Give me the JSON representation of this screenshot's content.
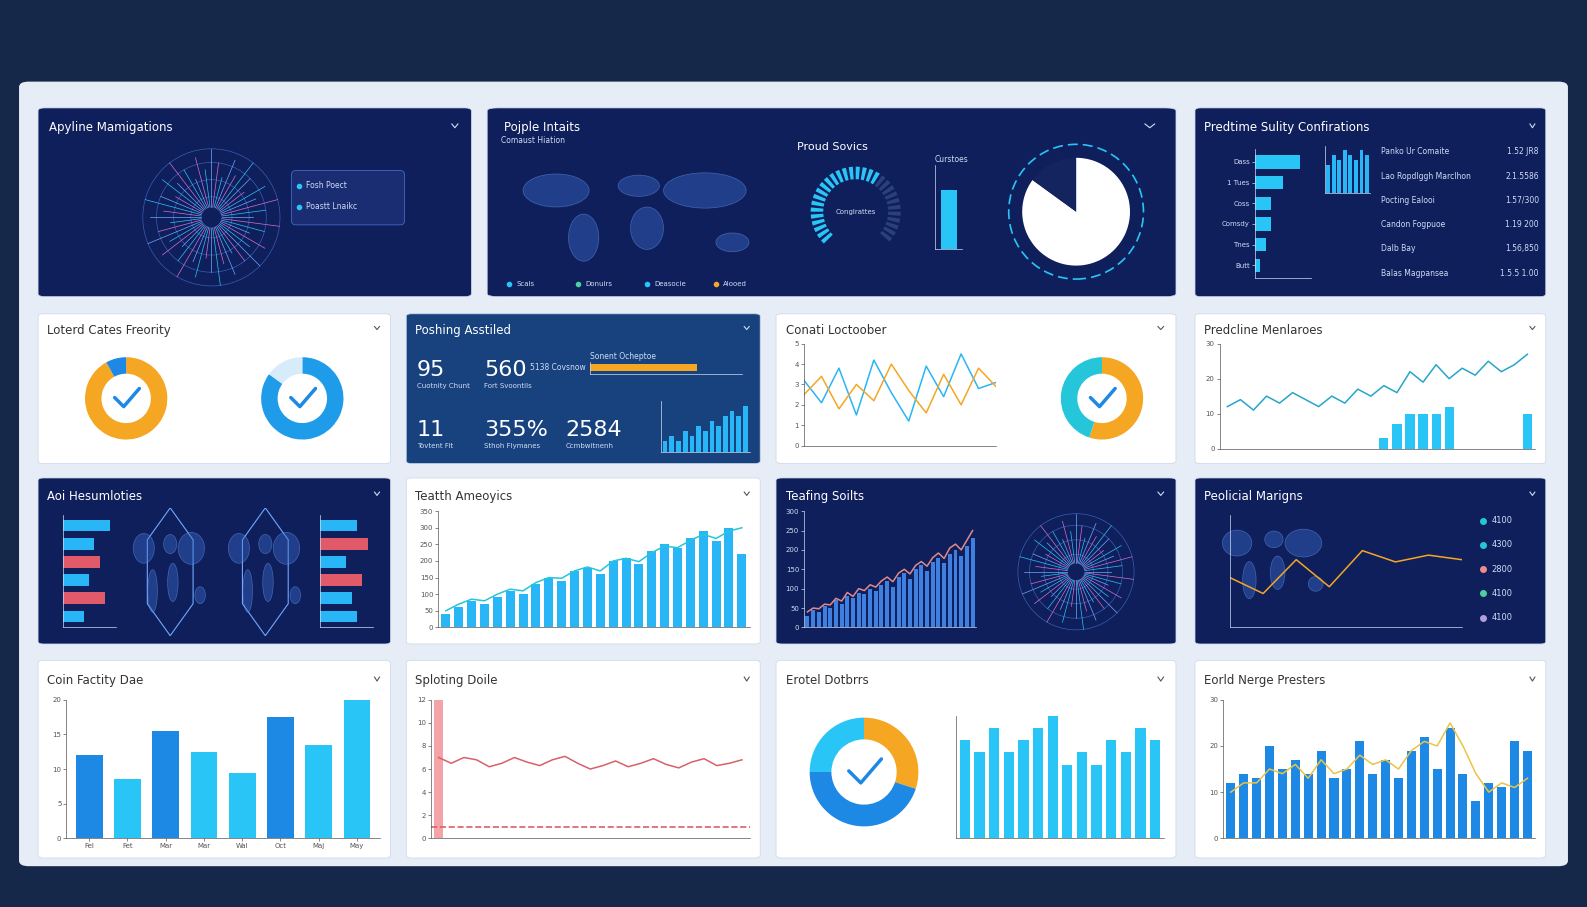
{
  "chart_data": [
    {
      "title": "Apyline Mamigations",
      "charts": [
        {
          "type": "radial",
          "labels": [
            "Fosh Poect",
            "Poastt Lnaikc"
          ]
        }
      ]
    },
    {
      "title": "Pojple Intaits",
      "charts": [
        {
          "type": "map",
          "title": "Comaust Hiation",
          "labels": [
            "Scals",
            "Donuirs",
            "Deasocie",
            "Alooed"
          ]
        },
        {
          "type": "gauge",
          "title": "Proud Sovics",
          "subtitle": "Conglrattes",
          "value": 65,
          "ylim": [
            0,
            100
          ]
        },
        {
          "type": "bar",
          "title": "Curstoes",
          "values": [
            70
          ],
          "color": "#29c5f6",
          "ylim": [
            0,
            100
          ],
          "tick_labels": false
        },
        {
          "type": "pie",
          "values": [
            85,
            15
          ],
          "colors": [
            "#ffffff",
            "#13245e"
          ]
        }
      ]
    },
    {
      "title": "Predtime Sulity Confirations",
      "charts": [
        {
          "type": "bar",
          "orientation": "horizontal",
          "categories": [
            "Dass",
            "1 Tues",
            "Coss",
            "Comsdy",
            "Tnes",
            "Butt"
          ],
          "values": [
            8,
            5,
            3,
            3,
            2,
            1
          ],
          "color": "#29c5f6",
          "xlim": [
            0,
            10
          ],
          "tick_labels": "y"
        },
        {
          "type": "bar",
          "values": [
            6,
            8,
            7,
            9,
            8,
            7,
            9,
            8
          ],
          "color": "#29b6f6",
          "ylim": [
            0,
            10
          ],
          "tick_labels": false
        },
        {
          "type": "table",
          "rows": [
            [
              "Panko Ur Comaite",
              "1.52 JR8"
            ],
            [
              "Lao Ropdlggh Marclhon",
              "2.1.5586"
            ],
            [
              "Pocting Ealooi",
              "1.57/300"
            ],
            [
              "Candon Fogpuoe",
              "1.19 200"
            ],
            [
              "Dalb Bay",
              "1.56,850"
            ],
            [
              "Balas Magpansea",
              "1.5.5 1.00"
            ]
          ]
        }
      ]
    },
    {
      "title": "Loterd Cates Freority",
      "charts": [
        {
          "type": "pie",
          "values": [
            92,
            8
          ],
          "colors": [
            "#f5a623",
            "#1e88e5"
          ]
        },
        {
          "type": "pie",
          "values": [
            85,
            15
          ],
          "colors": [
            "#1e9be9",
            "#d6ecfb"
          ]
        }
      ]
    },
    {
      "title": "Poshing Asstiled",
      "charts": [
        {
          "type": "kpi",
          "items": [
            {
              "value": 95,
              "caption": "Cuotnity Chunt"
            },
            {
              "value": 560,
              "caption": "Fort Svoontils"
            },
            {
              "value": 11,
              "caption": "Tovtent Fit"
            },
            {
              "value": 355,
              "label": "355%",
              "caption": "Sthoh Flymanes"
            },
            {
              "value": 2584,
              "caption": "Ccmbwitnenh"
            }
          ]
        },
        {
          "type": "bar",
          "orientation": "horizontal",
          "title": "Sonent Ocheptoe",
          "subtitle": "5138 Covsnow",
          "values": [
            70
          ],
          "color": "#f5a623",
          "xlim": [
            0,
            100
          ],
          "tick_labels": false
        },
        {
          "type": "bar",
          "values": [
            2,
            3,
            2,
            4,
            3,
            5,
            4,
            6,
            5,
            7,
            8,
            7,
            9
          ],
          "color": "#29b6f6",
          "ylim": [
            0,
            10
          ],
          "tick_labels": false
        }
      ]
    },
    {
      "title": "Conati Loctoober",
      "charts": [
        {
          "type": "line",
          "x": [
            0,
            1,
            2,
            3,
            4,
            5,
            6,
            7,
            8,
            9,
            10,
            11
          ],
          "xlim": [
            0,
            11
          ],
          "ylim": [
            0,
            5
          ],
          "yticks": [
            0,
            1,
            2,
            3,
            4,
            5
          ],
          "tick_labels": "y",
          "series": [
            {
              "color": "#29b6f6",
              "values": [
                3.2,
                2.1,
                3.8,
                1.5,
                4.2,
                2.6,
                1.2,
                3.9,
                2.4,
                4.5,
                2.8,
                3.1
              ]
            },
            {
              "color": "#f5a623",
              "values": [
                2.5,
                3.4,
                1.8,
                3.0,
                2.2,
                4.0,
                2.7,
                1.6,
                3.5,
                2.0,
                3.8,
                2.9
              ]
            }
          ]
        },
        {
          "type": "pie",
          "values": [
            55,
            45
          ],
          "colors": [
            "#f5a623",
            "#26c6da"
          ]
        }
      ]
    },
    {
      "title": "Predcline Menlaroes",
      "charts": [
        {
          "type": "combo",
          "ylim": [
            0,
            30
          ],
          "yticks": [
            0,
            10,
            20,
            30
          ],
          "tick_labels": "y",
          "series": [
            {
              "type": "bar",
              "color": "#29c5f6",
              "values": [
                null,
                null,
                null,
                null,
                null,
                null,
                null,
                null,
                null,
                null,
                null,
                null,
                3,
                7,
                10,
                10,
                10,
                12,
                null,
                null,
                null,
                null,
                null,
                10
              ]
            },
            {
              "type": "line",
              "color": "#26a6c9",
              "values": [
                12,
                14,
                11,
                15,
                13,
                16,
                14,
                12,
                15,
                13,
                17,
                15,
                18,
                16,
                22,
                19,
                24,
                20,
                23,
                21,
                25,
                22,
                24,
                27
              ]
            }
          ]
        }
      ]
    },
    {
      "title": "Aoi Hesumloties",
      "charts": [
        {
          "type": "bar",
          "orientation": "horizontal",
          "values": [
            9,
            6,
            7,
            5,
            8,
            4
          ],
          "colors": [
            "#29b6f6",
            "#29b6f6",
            "#e05a6a",
            "#29b6f6",
            "#e05a6a",
            "#29b6f6"
          ],
          "xlim": [
            0,
            10
          ],
          "tick_labels": false
        },
        {
          "type": "map"
        },
        {
          "type": "map"
        },
        {
          "type": "bar",
          "orientation": "horizontal",
          "values": [
            7,
            9,
            5,
            8,
            6,
            7
          ],
          "colors": [
            "#29b6f6",
            "#e05a6a",
            "#29b6f6",
            "#e05a6a",
            "#29b6f6",
            "#29b6f6"
          ],
          "xlim": [
            0,
            10
          ],
          "tick_labels": false
        }
      ]
    },
    {
      "title": "Teatth Ameoyics",
      "charts": [
        {
          "type": "combo",
          "ylim": [
            0,
            350
          ],
          "yticks": [
            0,
            50,
            100,
            150,
            200,
            250,
            300,
            350
          ],
          "tick_labels": "y",
          "series": [
            {
              "type": "bar",
              "color": "#29b6f6",
              "values": [
                40,
                60,
                80,
                70,
                90,
                110,
                100,
                130,
                150,
                140,
                170,
                180,
                160,
                200,
                210,
                190,
                230,
                250,
                240,
                270,
                290,
                260,
                300,
                220
              ]
            },
            {
              "type": "line",
              "color": "#26c6da",
              "values": [
                50,
                70,
                85,
                80,
                100,
                115,
                110,
                135,
                150,
                148,
                170,
                182,
                170,
                200,
                208,
                198,
                225,
                245,
                240,
                262,
                280,
                268,
                290,
                300
              ]
            }
          ]
        }
      ]
    },
    {
      "title": "Teafing Soilts",
      "charts": [
        {
          "type": "combo",
          "ylim": [
            0,
            300
          ],
          "yticks": [
            0,
            50,
            100,
            150,
            200,
            250,
            300
          ],
          "tick_labels": "y",
          "series": [
            {
              "type": "bar",
              "color": "#3f7fe0",
              "values": [
                30,
                45,
                40,
                55,
                50,
                70,
                60,
                80,
                75,
                90,
                85,
                100,
                95,
                110,
                120,
                105,
                130,
                140,
                125,
                150,
                160,
                145,
                170,
                180,
                165,
                190,
                200,
                185,
                210,
                230
              ]
            },
            {
              "type": "line",
              "color": "#e08a8a",
              "values": [
                40,
                50,
                48,
                60,
                58,
                75,
                68,
                90,
                80,
                100,
                95,
                110,
                104,
                120,
                130,
                118,
                140,
                150,
                138,
                160,
                170,
                158,
                180,
                192,
                178,
                205,
                215,
                200,
                225,
                250
              ]
            }
          ]
        },
        {
          "type": "radial"
        }
      ]
    },
    {
      "title": "Peolicial Marigns",
      "charts": [
        {
          "type": "map"
        },
        {
          "type": "line",
          "x": [
            0,
            1,
            2,
            3,
            4,
            5,
            6,
            7
          ],
          "xlim": [
            0,
            7
          ],
          "ylim": [
            0,
            5
          ],
          "tick_labels": false,
          "series": [
            {
              "color": "#f5a623",
              "values": [
                2.2,
                1.5,
                3.0,
                1.8,
                3.4,
                2.9,
                3.2,
                3.0
              ]
            }
          ]
        },
        {
          "type": "items",
          "items": [
            {
              "value": 4100,
              "color": "#26c6da"
            },
            {
              "value": 4300,
              "color": "#26c6da"
            },
            {
              "value": 2800,
              "color": "#f28b8b"
            },
            {
              "value": 4100,
              "color": "#4dd0a0"
            },
            {
              "value": 4100,
              "color": "#b39ddb"
            }
          ]
        }
      ]
    },
    {
      "title": "Coin Factity Dae",
      "charts": [
        {
          "type": "bar",
          "categories": [
            "Fel",
            "Fet",
            "Mar",
            "Mar",
            "Wal",
            "Oct",
            "Maj",
            "May"
          ],
          "values": [
            12,
            8.5,
            15.5,
            12.5,
            9.5,
            17.5,
            13.5,
            20
          ],
          "colors": [
            "#1e88e5",
            "#29c5f6",
            "#1e88e5",
            "#29c5f6",
            "#29c5f6",
            "#1e88e5",
            "#29c5f6",
            "#29c5f6"
          ],
          "ylim": [
            0,
            20
          ],
          "yticks": [
            0,
            5,
            10,
            15,
            20
          ]
        }
      ]
    },
    {
      "title": "Sploting Doile",
      "charts": [
        {
          "type": "combo",
          "ylim": [
            0,
            12
          ],
          "yticks": [
            0,
            2,
            4,
            6,
            8,
            10,
            12
          ],
          "tick_labels": "y",
          "threshold": 1,
          "series": [
            {
              "type": "bar",
              "color": "#f4a3a8",
              "values": [
                12,
                null,
                null,
                null,
                null,
                null,
                null,
                null,
                null,
                null,
                null,
                null,
                null,
                null,
                null,
                null,
                null,
                null,
                null,
                null,
                null,
                null,
                null,
                null,
                null
              ]
            },
            {
              "type": "line",
              "color": "#d9606a",
              "values": [
                7,
                6.5,
                7,
                6.8,
                6.2,
                6.5,
                7,
                6.6,
                6.3,
                6.8,
                7.1,
                6.5,
                6,
                6.3,
                6.7,
                6.2,
                6.5,
                6.9,
                6.4,
                6.1,
                6.6,
                6.9,
                6.3,
                6.5,
                6.8
              ]
            }
          ]
        }
      ]
    },
    {
      "title": "Erotel Dotbrrs",
      "charts": [
        {
          "type": "pie",
          "values": [
            30,
            45,
            25
          ],
          "colors": [
            "#f5a623",
            "#1e88e5",
            "#29c5f6"
          ]
        },
        {
          "type": "bar",
          "values": [
            8,
            7,
            9,
            7,
            8,
            9,
            10,
            6,
            7,
            6,
            8,
            7,
            9,
            8
          ],
          "color": "#29c5f6",
          "ylim": [
            0,
            10
          ],
          "tick_labels": false
        }
      ]
    },
    {
      "title": "Eorld Nerge Presters",
      "charts": [
        {
          "type": "combo",
          "ylim": [
            0,
            30
          ],
          "yticks": [
            0,
            10,
            20,
            30
          ],
          "tick_labels": "y",
          "series": [
            {
              "type": "bar",
              "color": "#1e88e5",
              "values": [
                12,
                14,
                13,
                20,
                15,
                17,
                14,
                19,
                13,
                15,
                21,
                14,
                17,
                13,
                19,
                22,
                15,
                24,
                14,
                8,
                12,
                11,
                21,
                19
              ]
            },
            {
              "type": "line",
              "color": "#e8c547",
              "values": [
                10,
                12,
                12,
                15,
                14,
                16,
                13,
                17,
                14,
                15,
                18,
                16,
                17,
                15,
                19,
                21,
                20,
                25,
                20,
                14,
                10,
                12,
                11,
                13
              ]
            }
          ]
        }
      ]
    }
  ]
}
